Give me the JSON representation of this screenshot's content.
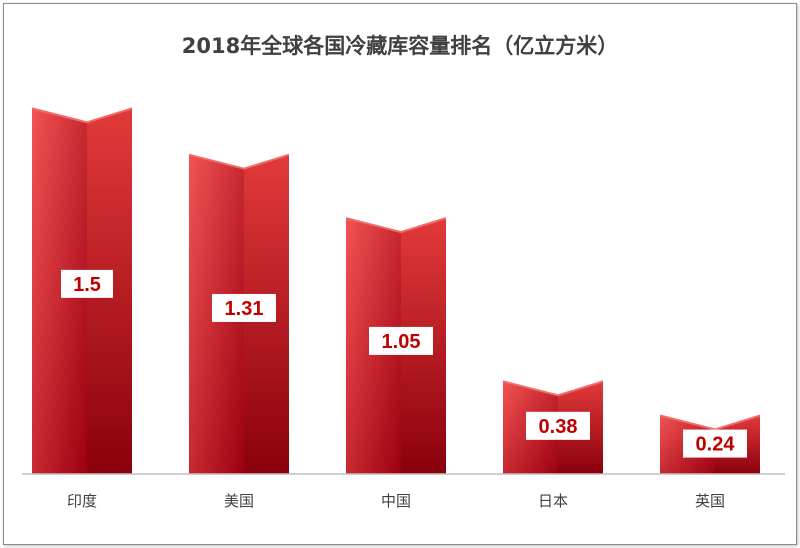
{
  "chart_data": {
    "type": "bar",
    "title": "2018年全球各国冷藏库容量排名（亿立方米）",
    "categories": [
      "印度",
      "美国",
      "中国",
      "日本",
      "英国"
    ],
    "values": [
      1.5,
      1.31,
      1.05,
      0.38,
      0.24
    ],
    "value_labels": [
      "1.5",
      "1.31",
      "1.05",
      "0.38",
      "0.24"
    ],
    "ylim": [
      0,
      1.6
    ],
    "grid": false,
    "legend": "none",
    "colors": {
      "bar_front_light": "#f25353",
      "bar_front_dark": "#9c0010",
      "bar_side_light": "#e23a3a",
      "bar_side_dark": "#8a000c",
      "bar_top": "#f46a6a",
      "label_text": "#c00000",
      "axis": "#bfbfbf"
    }
  }
}
